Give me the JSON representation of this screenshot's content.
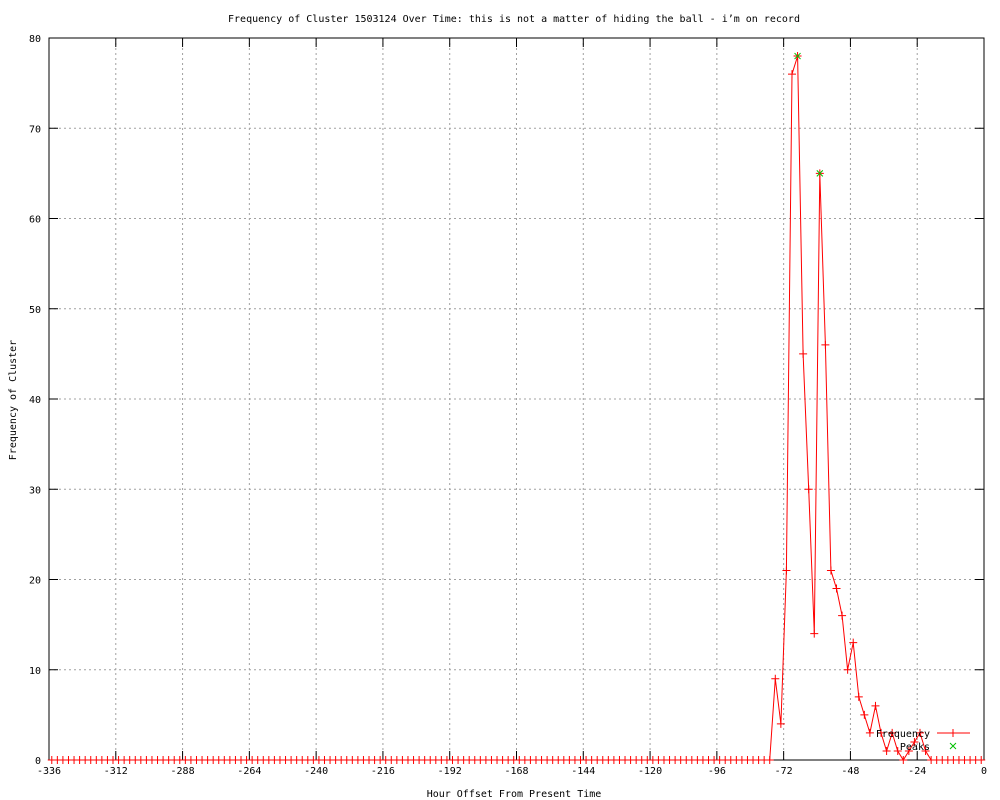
{
  "chart_data": {
    "type": "line",
    "title": "Frequency of Cluster 1503124 Over Time: this is not a matter of hiding the ball - i’m on record",
    "xlabel": "Hour Offset From Present Time",
    "ylabel": "Frequency of Cluster",
    "xlim": [
      -336,
      0
    ],
    "ylim": [
      0,
      80
    ],
    "xticks": [
      -336,
      -312,
      -288,
      -264,
      -240,
      -216,
      -192,
      -168,
      -144,
      -120,
      -96,
      -72,
      -48,
      -24,
      0
    ],
    "yticks": [
      0,
      10,
      20,
      30,
      40,
      50,
      60,
      70,
      80
    ],
    "grid": true,
    "legend_position": "bottom-right",
    "series": [
      {
        "name": "Frequency",
        "color": "#ff0000",
        "marker": "plus",
        "x": [
          -335,
          -333,
          -331,
          -329,
          -327,
          -325,
          -323,
          -321,
          -319,
          -317,
          -315,
          -313,
          -311,
          -309,
          -307,
          -305,
          -303,
          -301,
          -299,
          -297,
          -295,
          -293,
          -291,
          -289,
          -287,
          -285,
          -283,
          -281,
          -279,
          -277,
          -275,
          -273,
          -271,
          -269,
          -267,
          -265,
          -263,
          -261,
          -259,
          -257,
          -255,
          -253,
          -251,
          -249,
          -247,
          -245,
          -243,
          -241,
          -239,
          -237,
          -235,
          -233,
          -231,
          -229,
          -227,
          -225,
          -223,
          -221,
          -219,
          -217,
          -215,
          -213,
          -211,
          -209,
          -207,
          -205,
          -203,
          -201,
          -199,
          -197,
          -195,
          -193,
          -191,
          -189,
          -187,
          -185,
          -183,
          -181,
          -179,
          -177,
          -175,
          -173,
          -171,
          -169,
          -167,
          -165,
          -163,
          -161,
          -159,
          -157,
          -155,
          -153,
          -151,
          -149,
          -147,
          -145,
          -143,
          -141,
          -139,
          -137,
          -135,
          -133,
          -131,
          -129,
          -127,
          -125,
          -123,
          -121,
          -119,
          -117,
          -115,
          -113,
          -111,
          -109,
          -107,
          -105,
          -103,
          -101,
          -99,
          -97,
          -95,
          -93,
          -91,
          -89,
          -87,
          -85,
          -83,
          -81,
          -79,
          -77,
          -75,
          -73,
          -71,
          -69,
          -67,
          -65,
          -63,
          -61,
          -59,
          -57,
          -55,
          -53,
          -51,
          -49,
          -47,
          -45,
          -43,
          -41,
          -39,
          -37,
          -35,
          -33,
          -31,
          -29,
          -27,
          -25,
          -23,
          -21,
          -19,
          -17,
          -15,
          -13,
          -11,
          -9,
          -7,
          -5,
          -3,
          -1
        ],
        "y": [
          0,
          0,
          0,
          0,
          0,
          0,
          0,
          0,
          0,
          0,
          0,
          0,
          0,
          0,
          0,
          0,
          0,
          0,
          0,
          0,
          0,
          0,
          0,
          0,
          0,
          0,
          0,
          0,
          0,
          0,
          0,
          0,
          0,
          0,
          0,
          0,
          0,
          0,
          0,
          0,
          0,
          0,
          0,
          0,
          0,
          0,
          0,
          0,
          0,
          0,
          0,
          0,
          0,
          0,
          0,
          0,
          0,
          0,
          0,
          0,
          0,
          0,
          0,
          0,
          0,
          0,
          0,
          0,
          0,
          0,
          0,
          0,
          0,
          0,
          0,
          0,
          0,
          0,
          0,
          0,
          0,
          0,
          0,
          0,
          0,
          0,
          0,
          0,
          0,
          0,
          0,
          0,
          0,
          0,
          0,
          0,
          0,
          0,
          0,
          0,
          0,
          0,
          0,
          0,
          0,
          0,
          0,
          0,
          0,
          0,
          0,
          0,
          0,
          0,
          0,
          0,
          0,
          0,
          0,
          0,
          0,
          0,
          0,
          0,
          0,
          0,
          0,
          0,
          0,
          0,
          9,
          4,
          21,
          76,
          78,
          45,
          30,
          14,
          65,
          46,
          21,
          19,
          16,
          10,
          13,
          7,
          5,
          3,
          6,
          3,
          1,
          3,
          1,
          0,
          1,
          2,
          3,
          1,
          0,
          0,
          0,
          0,
          0,
          0,
          0,
          0,
          0,
          0
        ]
      },
      {
        "name": "Peaks",
        "color": "#00c000",
        "marker": "cross",
        "x": [
          -67,
          -59
        ],
        "y": [
          78,
          65
        ]
      }
    ]
  }
}
